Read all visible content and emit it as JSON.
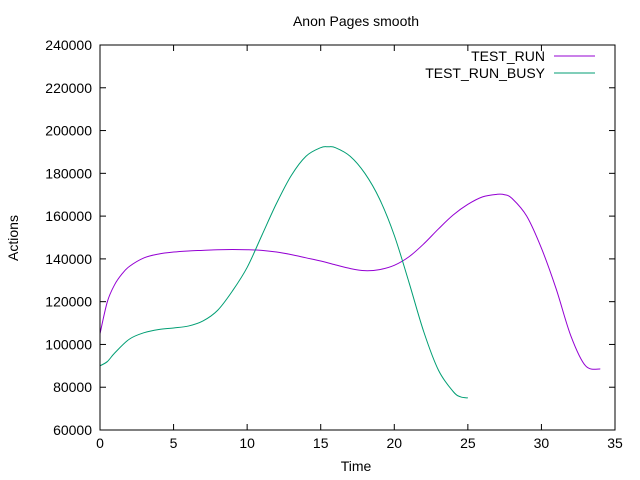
{
  "chart_data": {
    "type": "line",
    "title": "Anon Pages smooth",
    "xlabel": "Time",
    "ylabel": "Actions",
    "xlim": [
      0,
      35
    ],
    "ylim": [
      60000,
      240000
    ],
    "xticks": [
      0,
      5,
      10,
      15,
      20,
      25,
      30,
      35
    ],
    "yticks": [
      60000,
      80000,
      100000,
      120000,
      140000,
      160000,
      180000,
      200000,
      220000,
      240000
    ],
    "grid": false,
    "legend_position": "top-right",
    "series": [
      {
        "name": "TEST_RUN",
        "color": "#9400d3",
        "x": [
          0,
          0.5,
          1,
          1.5,
          2,
          3,
          4,
          5,
          6,
          7,
          8,
          9,
          10,
          11,
          12,
          13,
          14,
          15,
          16,
          17,
          18,
          19,
          20,
          21,
          22,
          23,
          24,
          25,
          26,
          27,
          27.5,
          28,
          29,
          30,
          31,
          32,
          33,
          34
        ],
        "y": [
          105000,
          120000,
          128000,
          133000,
          136500,
          140500,
          142300,
          143200,
          143700,
          144000,
          144300,
          144400,
          144300,
          144000,
          143200,
          142000,
          140500,
          139000,
          137200,
          135500,
          134500,
          135000,
          137000,
          141000,
          147000,
          154000,
          160500,
          165500,
          169000,
          170200,
          170000,
          168300,
          160000,
          145000,
          126000,
          104000,
          90000,
          88500
        ]
      },
      {
        "name": "TEST_RUN_BUSY",
        "color": "#009e73",
        "x": [
          0,
          0.5,
          1,
          2,
          3,
          4,
          5,
          6,
          7,
          8,
          9,
          10,
          11,
          12,
          13,
          14,
          15,
          15.5,
          16,
          17,
          18,
          19,
          20,
          21,
          22,
          23,
          24,
          24.5,
          25
        ],
        "y": [
          90000,
          92000,
          96000,
          102500,
          105500,
          107000,
          107700,
          108600,
          111000,
          116000,
          125000,
          136000,
          151000,
          166000,
          179000,
          188000,
          192000,
          192400,
          192000,
          188000,
          180000,
          168000,
          151000,
          129000,
          106000,
          88000,
          78000,
          75500,
          75000
        ]
      }
    ]
  }
}
